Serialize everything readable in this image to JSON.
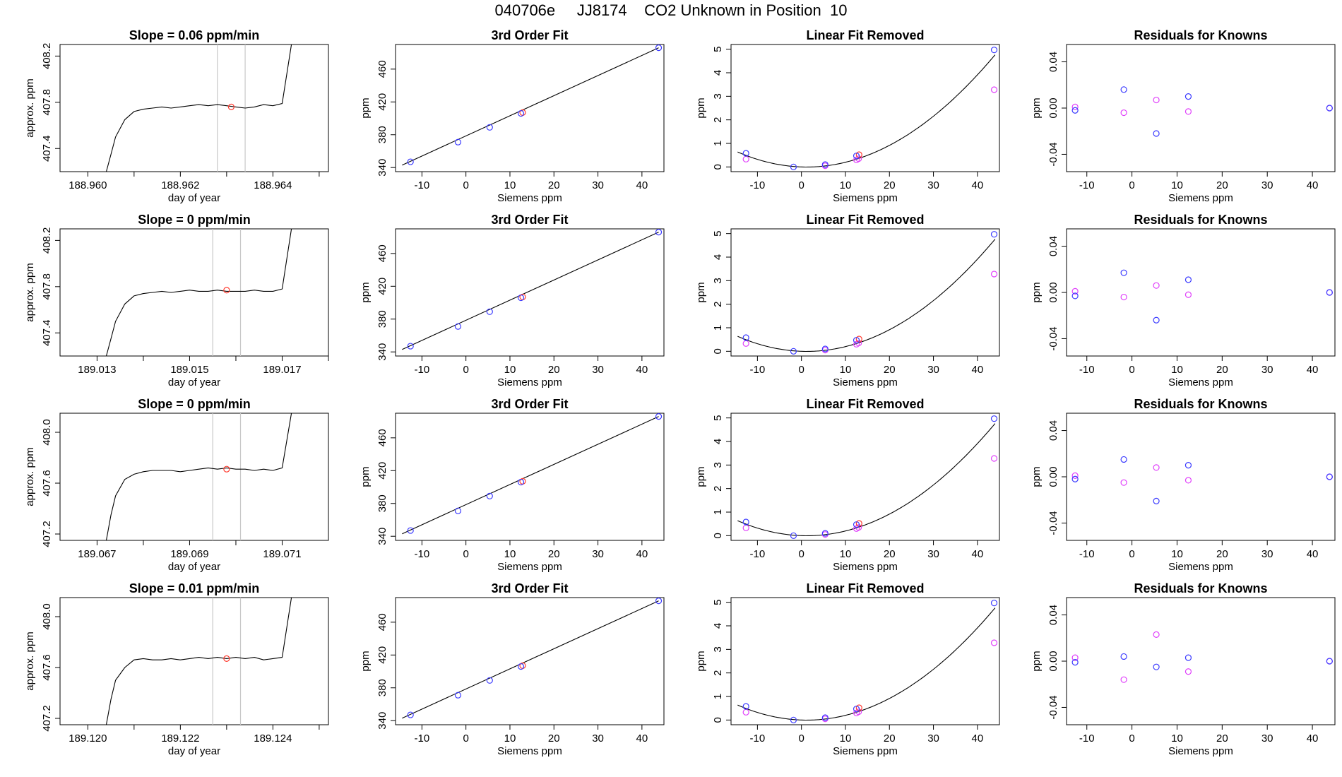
{
  "header": {
    "title": "040706e     JJ8174    CO2 Unknown in Position  10"
  },
  "colors": {
    "line": "#000000",
    "marker_red": "#ff3b2f",
    "window_lines": "#c8c8c8",
    "known_blue": "#3b3bff",
    "residual_magenta": "#e040fb",
    "unknown_red": "#ff3b2f"
  },
  "chart_data": [
    {
      "type": "line",
      "row": 1,
      "title": "Slope =  0.06  ppm/min",
      "xlabel": "day of year",
      "ylabel": "approx. ppm",
      "xticks": [
        "188.960",
        "188.962",
        "188.964"
      ],
      "yticks": [
        "407.4",
        "407.8",
        "408.2"
      ],
      "xlim": [
        188.9594,
        188.9652
      ],
      "ylim": [
        407.2,
        408.3
      ],
      "x": [
        188.9604,
        188.9605,
        188.9606,
        188.9608,
        188.961,
        188.9612,
        188.9614,
        188.9616,
        188.9618,
        188.962,
        188.9622,
        188.9624,
        188.9626,
        188.9628,
        188.963,
        188.9632,
        188.9634,
        188.9636,
        188.9638,
        188.964,
        188.9642,
        188.9644
      ],
      "y": [
        407.2,
        407.35,
        407.5,
        407.65,
        407.72,
        407.74,
        407.75,
        407.76,
        407.75,
        407.76,
        407.77,
        407.78,
        407.77,
        407.78,
        407.77,
        407.76,
        407.75,
        407.76,
        407.78,
        407.77,
        407.79,
        408.3
      ],
      "window": [
        188.9628,
        188.9634
      ],
      "marker": {
        "x": 188.9631,
        "y": 407.76
      }
    },
    {
      "type": "line",
      "row": 2,
      "title": "Slope =  0  ppm/min",
      "xlabel": "day of year",
      "ylabel": "approx. ppm",
      "xticks": [
        "189.013",
        "189.015",
        "189.017"
      ],
      "yticks": [
        "407.4",
        "407.8",
        "408.2"
      ],
      "xlim": [
        189.0122,
        189.018
      ],
      "ylim": [
        407.2,
        408.3
      ],
      "x": [
        189.0132,
        189.0133,
        189.0134,
        189.0136,
        189.0138,
        189.014,
        189.0142,
        189.0144,
        189.0146,
        189.0148,
        189.015,
        189.0152,
        189.0154,
        189.0156,
        189.0158,
        189.016,
        189.0162,
        189.0164,
        189.0166,
        189.0168,
        189.017,
        189.0172
      ],
      "y": [
        407.2,
        407.35,
        407.5,
        407.65,
        407.72,
        407.74,
        407.75,
        407.76,
        407.75,
        407.76,
        407.77,
        407.76,
        407.76,
        407.77,
        407.76,
        407.76,
        407.76,
        407.77,
        407.76,
        407.76,
        407.78,
        408.3
      ],
      "window": [
        189.0155,
        189.0161
      ],
      "marker": {
        "x": 189.0158,
        "y": 407.77
      }
    },
    {
      "type": "line",
      "row": 3,
      "title": "Slope =  0  ppm/min",
      "xlabel": "day of year",
      "ylabel": "approx. ppm",
      "xticks": [
        "189.067",
        "189.069",
        "189.071"
      ],
      "yticks": [
        "407.2",
        "407.6",
        "408.0"
      ],
      "xlim": [
        189.0662,
        189.072
      ],
      "ylim": [
        407.15,
        408.15
      ],
      "x": [
        189.0672,
        189.0673,
        189.0674,
        189.0676,
        189.0678,
        189.068,
        189.0682,
        189.0684,
        189.0686,
        189.0688,
        189.069,
        189.0692,
        189.0694,
        189.0696,
        189.0698,
        189.07,
        189.0702,
        189.0704,
        189.0706,
        189.0708,
        189.071,
        189.0712
      ],
      "y": [
        407.15,
        407.35,
        407.5,
        407.63,
        407.67,
        407.69,
        407.7,
        407.7,
        407.7,
        407.69,
        407.7,
        407.71,
        407.72,
        407.71,
        407.72,
        407.71,
        407.71,
        407.7,
        407.71,
        407.7,
        407.72,
        408.15
      ],
      "window": [
        189.0695,
        189.0701
      ],
      "marker": {
        "x": 189.0698,
        "y": 407.71
      }
    },
    {
      "type": "line",
      "row": 4,
      "title": "Slope =  0.01  ppm/min",
      "xlabel": "day of year",
      "ylabel": "approx. ppm",
      "xticks": [
        "189.120",
        "189.122",
        "189.124"
      ],
      "yticks": [
        "407.2",
        "407.6",
        "408.0"
      ],
      "xlim": [
        189.1194,
        189.1252
      ],
      "ylim": [
        407.15,
        408.15
      ],
      "x": [
        189.1204,
        189.1205,
        189.1206,
        189.1208,
        189.121,
        189.1212,
        189.1214,
        189.1216,
        189.1218,
        189.122,
        189.1222,
        189.1224,
        189.1226,
        189.1228,
        189.123,
        189.1232,
        189.1234,
        189.1236,
        189.1238,
        189.124,
        189.1242,
        189.1244
      ],
      "y": [
        407.15,
        407.35,
        407.5,
        407.6,
        407.66,
        407.67,
        407.66,
        407.66,
        407.67,
        407.66,
        407.67,
        407.68,
        407.67,
        407.68,
        407.67,
        407.68,
        407.67,
        407.68,
        407.66,
        407.67,
        407.68,
        408.15
      ],
      "window": [
        189.1227,
        189.1233
      ],
      "marker": {
        "x": 189.123,
        "y": 407.67
      }
    },
    {
      "type": "scatter",
      "title": "3rd Order Fit",
      "xlabel": "Siemens ppm",
      "ylabel": "ppm",
      "xticks": [
        "-10",
        "0",
        "10",
        "20",
        "30",
        "40"
      ],
      "yticks": [
        "340",
        "380",
        "420",
        "460"
      ],
      "xlim": [
        -16,
        45
      ],
      "ylim": [
        335,
        490
      ],
      "known": [
        [
          -12.6,
          347
        ],
        [
          -1.8,
          371
        ],
        [
          5.4,
          389
        ],
        [
          12.5,
          406
        ],
        [
          43.8,
          486
        ]
      ],
      "unknown": [
        [
          12.9,
          407
        ]
      ],
      "fit_line": [
        [
          -14.5,
          343
        ],
        [
          43.8,
          486
        ]
      ]
    },
    {
      "type": "scatter",
      "title": "3rd Order Fit",
      "xlabel": "Siemens ppm",
      "ylabel": "ppm",
      "xticks": [
        "-10",
        "0",
        "10",
        "20",
        "30",
        "40"
      ],
      "yticks": [
        "340",
        "380",
        "420",
        "460"
      ],
      "xlim": [
        -16,
        45
      ],
      "ylim": [
        335,
        490
      ],
      "known": [
        [
          -12.6,
          347
        ],
        [
          -1.8,
          371
        ],
        [
          5.4,
          389
        ],
        [
          12.5,
          406
        ],
        [
          43.8,
          486
        ]
      ],
      "unknown": [
        [
          12.9,
          407
        ]
      ],
      "fit_line": [
        [
          -14.5,
          343
        ],
        [
          43.8,
          486
        ]
      ]
    },
    {
      "type": "scatter",
      "title": "3rd Order Fit",
      "xlabel": "Siemens ppm",
      "ylabel": "ppm",
      "xticks": [
        "-10",
        "0",
        "10",
        "20",
        "30",
        "40"
      ],
      "yticks": [
        "340",
        "380",
        "420",
        "460"
      ],
      "xlim": [
        -16,
        45
      ],
      "ylim": [
        335,
        490
      ],
      "known": [
        [
          -12.6,
          347
        ],
        [
          -1.8,
          371
        ],
        [
          5.4,
          389
        ],
        [
          12.5,
          406
        ],
        [
          43.8,
          486
        ]
      ],
      "unknown": [
        [
          12.9,
          407
        ]
      ],
      "fit_line": [
        [
          -14.5,
          343
        ],
        [
          43.8,
          486
        ]
      ]
    },
    {
      "type": "scatter",
      "title": "3rd Order Fit",
      "xlabel": "Siemens ppm",
      "ylabel": "ppm",
      "xticks": [
        "-10",
        "0",
        "10",
        "20",
        "30",
        "40"
      ],
      "yticks": [
        "340",
        "380",
        "420",
        "460"
      ],
      "xlim": [
        -16,
        45
      ],
      "ylim": [
        335,
        490
      ],
      "known": [
        [
          -12.6,
          347
        ],
        [
          -1.8,
          371
        ],
        [
          5.4,
          389
        ],
        [
          12.5,
          406
        ],
        [
          43.8,
          486
        ]
      ],
      "unknown": [
        [
          12.9,
          407
        ]
      ],
      "fit_line": [
        [
          -14.5,
          343
        ],
        [
          43.8,
          486
        ]
      ]
    },
    {
      "type": "scatter",
      "title": "Linear Fit Removed",
      "xlabel": "Siemens ppm",
      "ylabel": "ppm",
      "xticks": [
        "-10",
        "0",
        "10",
        "20",
        "30",
        "40"
      ],
      "yticks": [
        "0",
        "1",
        "2",
        "3",
        "4",
        "5"
      ],
      "xlim": [
        -16,
        45
      ],
      "ylim": [
        -0.2,
        5.2
      ],
      "known": [
        [
          -12.6,
          0.58
        ],
        [
          -1.8,
          0.0
        ],
        [
          5.4,
          0.1
        ],
        [
          12.5,
          0.47
        ],
        [
          43.8,
          4.97
        ]
      ],
      "residual": [
        [
          -12.6,
          0.33
        ],
        [
          5.4,
          0.05
        ],
        [
          12.5,
          0.3
        ],
        [
          13.0,
          0.35
        ],
        [
          43.8,
          3.28
        ]
      ],
      "unknown": [
        [
          13.1,
          0.52
        ]
      ],
      "curve_a": 0.0026,
      "curve_b": -0.0062
    },
    {
      "type": "scatter",
      "title": "Linear Fit Removed",
      "xlabel": "Siemens ppm",
      "ylabel": "ppm",
      "xticks": [
        "-10",
        "0",
        "10",
        "20",
        "30",
        "40"
      ],
      "yticks": [
        "0",
        "1",
        "2",
        "3",
        "4",
        "5"
      ],
      "xlim": [
        -16,
        45
      ],
      "ylim": [
        -0.2,
        5.2
      ],
      "known": [
        [
          -12.6,
          0.58
        ],
        [
          -1.8,
          0.0
        ],
        [
          5.4,
          0.1
        ],
        [
          12.5,
          0.47
        ],
        [
          43.8,
          4.97
        ]
      ],
      "residual": [
        [
          -12.6,
          0.33
        ],
        [
          5.4,
          0.05
        ],
        [
          12.5,
          0.3
        ],
        [
          13.0,
          0.35
        ],
        [
          43.8,
          3.28
        ]
      ],
      "unknown": [
        [
          13.1,
          0.52
        ]
      ],
      "curve_a": 0.0026,
      "curve_b": -0.0062
    },
    {
      "type": "scatter",
      "title": "Linear Fit Removed",
      "xlabel": "Siemens ppm",
      "ylabel": "ppm",
      "xticks": [
        "-10",
        "0",
        "10",
        "20",
        "30",
        "40"
      ],
      "yticks": [
        "0",
        "1",
        "2",
        "3",
        "4",
        "5"
      ],
      "xlim": [
        -16,
        45
      ],
      "ylim": [
        -0.2,
        5.2
      ],
      "known": [
        [
          -12.6,
          0.58
        ],
        [
          -1.8,
          0.0
        ],
        [
          5.4,
          0.1
        ],
        [
          12.5,
          0.47
        ],
        [
          43.8,
          4.97
        ]
      ],
      "residual": [
        [
          -12.6,
          0.33
        ],
        [
          5.4,
          0.05
        ],
        [
          12.5,
          0.3
        ],
        [
          13.0,
          0.35
        ],
        [
          43.8,
          3.28
        ]
      ],
      "unknown": [
        [
          13.1,
          0.52
        ]
      ],
      "curve_a": 0.0026,
      "curve_b": -0.0062
    },
    {
      "type": "scatter",
      "title": "Linear Fit Removed",
      "xlabel": "Siemens ppm",
      "ylabel": "ppm",
      "xticks": [
        "-10",
        "0",
        "10",
        "20",
        "30",
        "40"
      ],
      "yticks": [
        "0",
        "1",
        "2",
        "3",
        "4",
        "5"
      ],
      "xlim": [
        -16,
        45
      ],
      "ylim": [
        -0.2,
        5.2
      ],
      "known": [
        [
          -12.6,
          0.58
        ],
        [
          -1.8,
          0.0
        ],
        [
          5.4,
          0.1
        ],
        [
          12.5,
          0.47
        ],
        [
          43.8,
          4.97
        ]
      ],
      "residual": [
        [
          -12.6,
          0.33
        ],
        [
          5.4,
          0.05
        ],
        [
          12.5,
          0.3
        ],
        [
          13.0,
          0.35
        ],
        [
          43.8,
          3.28
        ]
      ],
      "unknown": [
        [
          13.1,
          0.52
        ]
      ],
      "curve_a": 0.0026,
      "curve_b": -0.0062
    },
    {
      "type": "scatter",
      "title": "Residuals for Knowns",
      "xlabel": "Siemens ppm",
      "ylabel": "ppm",
      "xticks": [
        "-10",
        "0",
        "10",
        "20",
        "30",
        "40"
      ],
      "yticks": [
        "-0.04",
        "0.00",
        "0.04"
      ],
      "xlim": [
        -14.5,
        45
      ],
      "ylim": [
        -0.055,
        0.055
      ],
      "known": [
        [
          -12.6,
          -0.002
        ],
        [
          -1.8,
          0.016
        ],
        [
          5.4,
          -0.022
        ],
        [
          12.5,
          0.01
        ],
        [
          43.8,
          0.0
        ]
      ],
      "residual": [
        [
          -12.6,
          0.001
        ],
        [
          -1.8,
          -0.004
        ],
        [
          5.4,
          0.007
        ],
        [
          12.5,
          -0.003
        ],
        [
          43.8,
          0.0
        ]
      ]
    },
    {
      "type": "scatter",
      "title": "Residuals for Knowns",
      "xlabel": "Siemens ppm",
      "ylabel": "ppm",
      "xticks": [
        "-10",
        "0",
        "10",
        "20",
        "30",
        "40"
      ],
      "yticks": [
        "-0.04",
        "0.00",
        "0.04"
      ],
      "xlim": [
        -14.5,
        45
      ],
      "ylim": [
        -0.055,
        0.055
      ],
      "known": [
        [
          -12.6,
          -0.003
        ],
        [
          -1.8,
          0.017
        ],
        [
          5.4,
          -0.024
        ],
        [
          12.5,
          0.011
        ],
        [
          43.8,
          0.0
        ]
      ],
      "residual": [
        [
          -12.6,
          0.001
        ],
        [
          -1.8,
          -0.004
        ],
        [
          5.4,
          0.006
        ],
        [
          12.5,
          -0.002
        ],
        [
          43.8,
          0.0
        ]
      ]
    },
    {
      "type": "scatter",
      "title": "Residuals for Knowns",
      "xlabel": "Siemens ppm",
      "ylabel": "ppm",
      "xticks": [
        "-10",
        "0",
        "10",
        "20",
        "30",
        "40"
      ],
      "yticks": [
        "-0.04",
        "0.00",
        "0.04"
      ],
      "xlim": [
        -14.5,
        45
      ],
      "ylim": [
        -0.055,
        0.055
      ],
      "known": [
        [
          -12.6,
          -0.002
        ],
        [
          -1.8,
          0.015
        ],
        [
          5.4,
          -0.021
        ],
        [
          12.5,
          0.01
        ],
        [
          43.8,
          0.0
        ]
      ],
      "residual": [
        [
          -12.6,
          0.001
        ],
        [
          -1.8,
          -0.005
        ],
        [
          5.4,
          0.008
        ],
        [
          12.5,
          -0.003
        ],
        [
          43.8,
          0.0
        ]
      ]
    },
    {
      "type": "scatter",
      "title": "Residuals for Knowns",
      "xlabel": "Siemens ppm",
      "ylabel": "ppm",
      "xticks": [
        "-10",
        "0",
        "10",
        "20",
        "30",
        "40"
      ],
      "yticks": [
        "-0.04",
        "0.00",
        "0.04"
      ],
      "xlim": [
        -14.5,
        45
      ],
      "ylim": [
        -0.055,
        0.055
      ],
      "known": [
        [
          -12.6,
          -0.001
        ],
        [
          -1.8,
          0.004
        ],
        [
          5.4,
          -0.005
        ],
        [
          12.5,
          0.003
        ],
        [
          43.8,
          0.0
        ]
      ],
      "residual": [
        [
          -12.6,
          0.003
        ],
        [
          -1.8,
          -0.016
        ],
        [
          5.4,
          0.023
        ],
        [
          12.5,
          -0.009
        ],
        [
          43.8,
          0.0
        ]
      ]
    }
  ]
}
